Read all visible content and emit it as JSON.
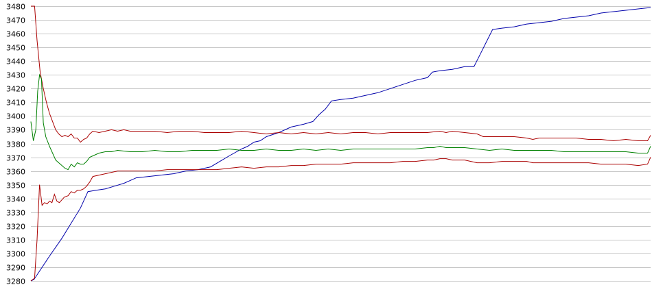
{
  "chart_data": {
    "type": "line",
    "title": "",
    "xlabel": "",
    "ylabel": "",
    "ylim": [
      3280,
      3480
    ],
    "xlim": [
      0,
      100
    ],
    "y_ticks": [
      3280,
      3290,
      3300,
      3310,
      3320,
      3330,
      3340,
      3350,
      3360,
      3370,
      3380,
      3390,
      3400,
      3410,
      3420,
      3430,
      3440,
      3450,
      3460,
      3470,
      3480
    ],
    "y_tick_labels": [
      "3280",
      "3290",
      "3300",
      "3310",
      "3320",
      "3330",
      "3340",
      "3350",
      "3360",
      "3370",
      "3380",
      "3390",
      "3400",
      "3410",
      "3420",
      "3430",
      "3440",
      "3450",
      "3460",
      "3470",
      "3480"
    ],
    "grid": true,
    "legend": "none",
    "series": [
      {
        "color": "#0000aa",
        "points": [
          [
            0,
            3280
          ],
          [
            0.5,
            3281
          ],
          [
            3,
            3298
          ],
          [
            5,
            3311
          ],
          [
            6.5,
            3322
          ],
          [
            8,
            3333
          ],
          [
            9.2,
            3345
          ],
          [
            10.5,
            3346
          ],
          [
            12,
            3347
          ],
          [
            13.5,
            3349
          ],
          [
            15,
            3351
          ],
          [
            17,
            3355
          ],
          [
            19,
            3356
          ],
          [
            21,
            3357
          ],
          [
            23,
            3358
          ],
          [
            25,
            3360
          ],
          [
            27,
            3361
          ],
          [
            29,
            3363
          ],
          [
            30.5,
            3367
          ],
          [
            32,
            3371
          ],
          [
            34,
            3376
          ],
          [
            35,
            3378
          ],
          [
            36,
            3381
          ],
          [
            37,
            3382
          ],
          [
            38,
            3385
          ],
          [
            40,
            3388
          ],
          [
            42,
            3392
          ],
          [
            44,
            3394
          ],
          [
            45.5,
            3396
          ],
          [
            46.5,
            3401
          ],
          [
            47.5,
            3405
          ],
          [
            48.5,
            3411
          ],
          [
            50,
            3412
          ],
          [
            52,
            3413
          ],
          [
            54,
            3415
          ],
          [
            56,
            3417
          ],
          [
            58,
            3420
          ],
          [
            60,
            3423
          ],
          [
            62,
            3426
          ],
          [
            64,
            3428
          ],
          [
            64.8,
            3432
          ],
          [
            66,
            3433
          ],
          [
            68,
            3434
          ],
          [
            70,
            3436
          ],
          [
            71.5,
            3436
          ],
          [
            72.5,
            3445
          ],
          [
            73.5,
            3454
          ],
          [
            74.5,
            3463
          ],
          [
            76,
            3464
          ],
          [
            78,
            3465
          ],
          [
            80,
            3467
          ],
          [
            82,
            3468
          ],
          [
            84,
            3469
          ],
          [
            86,
            3471
          ],
          [
            88,
            3472
          ],
          [
            90,
            3473
          ],
          [
            92,
            3475
          ],
          [
            94,
            3476
          ],
          [
            96,
            3477
          ],
          [
            98,
            3478
          ],
          [
            100,
            3479
          ]
        ]
      },
      {
        "color": "#aa0000",
        "points": [
          [
            0,
            3480
          ],
          [
            0.6,
            3480
          ],
          [
            1,
            3455
          ],
          [
            1.5,
            3432
          ],
          [
            2,
            3420
          ],
          [
            2.5,
            3410
          ],
          [
            3,
            3402
          ],
          [
            3.5,
            3396
          ],
          [
            4,
            3390
          ],
          [
            4.5,
            3387
          ],
          [
            5,
            3385
          ],
          [
            5.5,
            3386
          ],
          [
            6,
            3385
          ],
          [
            6.5,
            3387
          ],
          [
            7,
            3384
          ],
          [
            7.5,
            3384
          ],
          [
            8,
            3381
          ],
          [
            8.5,
            3383
          ],
          [
            9,
            3384
          ],
          [
            9.5,
            3387
          ],
          [
            10,
            3389
          ],
          [
            11,
            3388
          ],
          [
            12,
            3389
          ],
          [
            13,
            3390
          ],
          [
            14,
            3389
          ],
          [
            15,
            3390
          ],
          [
            16,
            3389
          ],
          [
            18,
            3389
          ],
          [
            20,
            3389
          ],
          [
            22,
            3388
          ],
          [
            24,
            3389
          ],
          [
            26,
            3389
          ],
          [
            28,
            3388
          ],
          [
            30,
            3388
          ],
          [
            32,
            3388
          ],
          [
            34,
            3389
          ],
          [
            36,
            3388
          ],
          [
            38,
            3387
          ],
          [
            40,
            3388
          ],
          [
            42,
            3387
          ],
          [
            44,
            3388
          ],
          [
            46,
            3387
          ],
          [
            48,
            3388
          ],
          [
            50,
            3387
          ],
          [
            52,
            3388
          ],
          [
            54,
            3388
          ],
          [
            56,
            3387
          ],
          [
            58,
            3388
          ],
          [
            60,
            3388
          ],
          [
            62,
            3388
          ],
          [
            64,
            3388
          ],
          [
            66,
            3389
          ],
          [
            67,
            3388
          ],
          [
            68,
            3389
          ],
          [
            70,
            3388
          ],
          [
            72,
            3387
          ],
          [
            73,
            3385
          ],
          [
            74,
            3385
          ],
          [
            76,
            3385
          ],
          [
            78,
            3385
          ],
          [
            80,
            3384
          ],
          [
            81,
            3383
          ],
          [
            82,
            3384
          ],
          [
            84,
            3384
          ],
          [
            86,
            3384
          ],
          [
            88,
            3384
          ],
          [
            90,
            3383
          ],
          [
            92,
            3383
          ],
          [
            94,
            3382
          ],
          [
            96,
            3383
          ],
          [
            98,
            3382
          ],
          [
            99.5,
            3382
          ],
          [
            100,
            3386
          ]
        ]
      },
      {
        "color": "#008000",
        "points": [
          [
            0,
            3396
          ],
          [
            0.4,
            3382
          ],
          [
            0.8,
            3390
          ],
          [
            1.1,
            3418
          ],
          [
            1.4,
            3430
          ],
          [
            1.7,
            3427
          ],
          [
            2,
            3395
          ],
          [
            2.4,
            3385
          ],
          [
            3,
            3378
          ],
          [
            3.5,
            3373
          ],
          [
            4,
            3368
          ],
          [
            4.5,
            3366
          ],
          [
            5,
            3364
          ],
          [
            5.5,
            3362
          ],
          [
            6,
            3361
          ],
          [
            6.5,
            3365
          ],
          [
            7,
            3363
          ],
          [
            7.5,
            3366
          ],
          [
            8,
            3365
          ],
          [
            8.5,
            3365
          ],
          [
            9,
            3367
          ],
          [
            9.5,
            3370
          ],
          [
            10,
            3371
          ],
          [
            11,
            3373
          ],
          [
            12,
            3374
          ],
          [
            13,
            3374
          ],
          [
            14,
            3375
          ],
          [
            16,
            3374
          ],
          [
            18,
            3374
          ],
          [
            20,
            3375
          ],
          [
            22,
            3374
          ],
          [
            24,
            3374
          ],
          [
            26,
            3375
          ],
          [
            28,
            3375
          ],
          [
            30,
            3375
          ],
          [
            32,
            3376
          ],
          [
            34,
            3375
          ],
          [
            36,
            3375
          ],
          [
            38,
            3376
          ],
          [
            40,
            3375
          ],
          [
            42,
            3375
          ],
          [
            44,
            3376
          ],
          [
            46,
            3375
          ],
          [
            48,
            3376
          ],
          [
            50,
            3375
          ],
          [
            52,
            3376
          ],
          [
            54,
            3376
          ],
          [
            56,
            3376
          ],
          [
            58,
            3376
          ],
          [
            60,
            3376
          ],
          [
            62,
            3376
          ],
          [
            64,
            3377
          ],
          [
            65,
            3377
          ],
          [
            66,
            3378
          ],
          [
            67,
            3377
          ],
          [
            68,
            3377
          ],
          [
            70,
            3377
          ],
          [
            72,
            3376
          ],
          [
            74,
            3375
          ],
          [
            76,
            3376
          ],
          [
            78,
            3375
          ],
          [
            80,
            3375
          ],
          [
            82,
            3375
          ],
          [
            84,
            3375
          ],
          [
            86,
            3374
          ],
          [
            88,
            3374
          ],
          [
            90,
            3374
          ],
          [
            92,
            3374
          ],
          [
            94,
            3374
          ],
          [
            96,
            3374
          ],
          [
            98,
            3373
          ],
          [
            99.5,
            3373
          ],
          [
            100,
            3378
          ]
        ]
      },
      {
        "color": "#aa0000",
        "points": [
          [
            0,
            3280
          ],
          [
            0.6,
            3282
          ],
          [
            1,
            3310
          ],
          [
            1.4,
            3350
          ],
          [
            1.8,
            3335
          ],
          [
            2.2,
            3337
          ],
          [
            2.6,
            3336
          ],
          [
            3,
            3338
          ],
          [
            3.4,
            3337
          ],
          [
            3.8,
            3343
          ],
          [
            4.2,
            3338
          ],
          [
            4.6,
            3337
          ],
          [
            5,
            3339
          ],
          [
            5.4,
            3341
          ],
          [
            6,
            3342
          ],
          [
            6.5,
            3345
          ],
          [
            7,
            3344
          ],
          [
            7.5,
            3346
          ],
          [
            8,
            3346
          ],
          [
            8.5,
            3347
          ],
          [
            9,
            3349
          ],
          [
            9.5,
            3352
          ],
          [
            10,
            3356
          ],
          [
            11,
            3357
          ],
          [
            12,
            3358
          ],
          [
            13,
            3359
          ],
          [
            14,
            3360
          ],
          [
            16,
            3360
          ],
          [
            18,
            3360
          ],
          [
            20,
            3360
          ],
          [
            22,
            3361
          ],
          [
            24,
            3361
          ],
          [
            26,
            3361
          ],
          [
            28,
            3361
          ],
          [
            30,
            3361
          ],
          [
            32,
            3362
          ],
          [
            34,
            3363
          ],
          [
            36,
            3362
          ],
          [
            38,
            3363
          ],
          [
            40,
            3363
          ],
          [
            42,
            3364
          ],
          [
            44,
            3364
          ],
          [
            46,
            3365
          ],
          [
            48,
            3365
          ],
          [
            50,
            3365
          ],
          [
            52,
            3366
          ],
          [
            54,
            3366
          ],
          [
            56,
            3366
          ],
          [
            58,
            3366
          ],
          [
            60,
            3367
          ],
          [
            62,
            3367
          ],
          [
            64,
            3368
          ],
          [
            65,
            3368
          ],
          [
            66,
            3369
          ],
          [
            67,
            3369
          ],
          [
            68,
            3368
          ],
          [
            70,
            3368
          ],
          [
            71,
            3367
          ],
          [
            72,
            3366
          ],
          [
            74,
            3366
          ],
          [
            76,
            3367
          ],
          [
            78,
            3367
          ],
          [
            80,
            3367
          ],
          [
            81,
            3366
          ],
          [
            82,
            3366
          ],
          [
            84,
            3366
          ],
          [
            86,
            3366
          ],
          [
            88,
            3366
          ],
          [
            90,
            3366
          ],
          [
            92,
            3365
          ],
          [
            94,
            3365
          ],
          [
            96,
            3365
          ],
          [
            98,
            3364
          ],
          [
            99.5,
            3365
          ],
          [
            100,
            3370
          ]
        ]
      }
    ]
  }
}
